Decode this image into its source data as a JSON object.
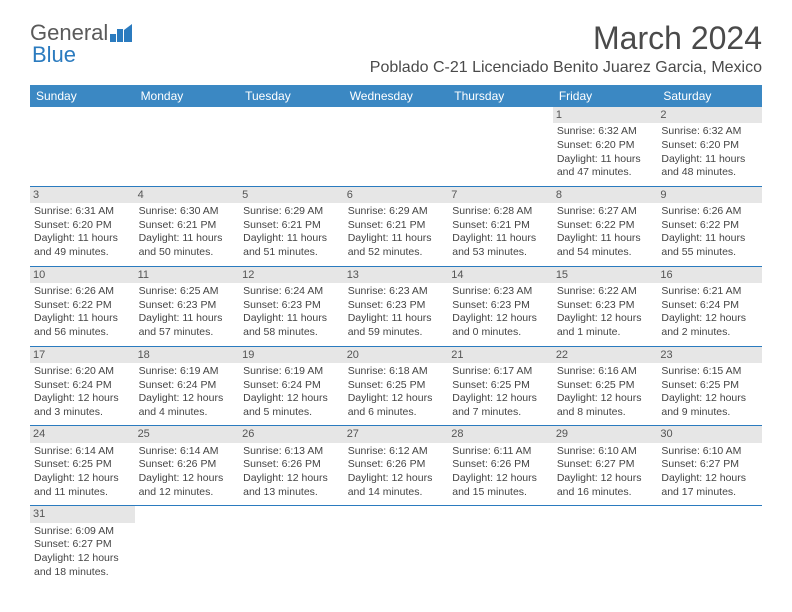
{
  "logo": {
    "general": "General",
    "blue": "Blue"
  },
  "month_title": "March 2024",
  "location": "Poblado C-21 Licenciado Benito Juarez Garcia, Mexico",
  "colors": {
    "header_bg": "#3b88c3",
    "header_text": "#ffffff",
    "border": "#2b7bbf",
    "daynum_bg": "#e6e6e6"
  },
  "weekdays": [
    "Sunday",
    "Monday",
    "Tuesday",
    "Wednesday",
    "Thursday",
    "Friday",
    "Saturday"
  ],
  "weeks": [
    [
      null,
      null,
      null,
      null,
      null,
      {
        "n": "1",
        "sr": "Sunrise: 6:32 AM",
        "ss": "Sunset: 6:20 PM",
        "d1": "Daylight: 11 hours",
        "d2": "and 47 minutes."
      },
      {
        "n": "2",
        "sr": "Sunrise: 6:32 AM",
        "ss": "Sunset: 6:20 PM",
        "d1": "Daylight: 11 hours",
        "d2": "and 48 minutes."
      }
    ],
    [
      {
        "n": "3",
        "sr": "Sunrise: 6:31 AM",
        "ss": "Sunset: 6:20 PM",
        "d1": "Daylight: 11 hours",
        "d2": "and 49 minutes."
      },
      {
        "n": "4",
        "sr": "Sunrise: 6:30 AM",
        "ss": "Sunset: 6:21 PM",
        "d1": "Daylight: 11 hours",
        "d2": "and 50 minutes."
      },
      {
        "n": "5",
        "sr": "Sunrise: 6:29 AM",
        "ss": "Sunset: 6:21 PM",
        "d1": "Daylight: 11 hours",
        "d2": "and 51 minutes."
      },
      {
        "n": "6",
        "sr": "Sunrise: 6:29 AM",
        "ss": "Sunset: 6:21 PM",
        "d1": "Daylight: 11 hours",
        "d2": "and 52 minutes."
      },
      {
        "n": "7",
        "sr": "Sunrise: 6:28 AM",
        "ss": "Sunset: 6:21 PM",
        "d1": "Daylight: 11 hours",
        "d2": "and 53 minutes."
      },
      {
        "n": "8",
        "sr": "Sunrise: 6:27 AM",
        "ss": "Sunset: 6:22 PM",
        "d1": "Daylight: 11 hours",
        "d2": "and 54 minutes."
      },
      {
        "n": "9",
        "sr": "Sunrise: 6:26 AM",
        "ss": "Sunset: 6:22 PM",
        "d1": "Daylight: 11 hours",
        "d2": "and 55 minutes."
      }
    ],
    [
      {
        "n": "10",
        "sr": "Sunrise: 6:26 AM",
        "ss": "Sunset: 6:22 PM",
        "d1": "Daylight: 11 hours",
        "d2": "and 56 minutes."
      },
      {
        "n": "11",
        "sr": "Sunrise: 6:25 AM",
        "ss": "Sunset: 6:23 PM",
        "d1": "Daylight: 11 hours",
        "d2": "and 57 minutes."
      },
      {
        "n": "12",
        "sr": "Sunrise: 6:24 AM",
        "ss": "Sunset: 6:23 PM",
        "d1": "Daylight: 11 hours",
        "d2": "and 58 minutes."
      },
      {
        "n": "13",
        "sr": "Sunrise: 6:23 AM",
        "ss": "Sunset: 6:23 PM",
        "d1": "Daylight: 11 hours",
        "d2": "and 59 minutes."
      },
      {
        "n": "14",
        "sr": "Sunrise: 6:23 AM",
        "ss": "Sunset: 6:23 PM",
        "d1": "Daylight: 12 hours",
        "d2": "and 0 minutes."
      },
      {
        "n": "15",
        "sr": "Sunrise: 6:22 AM",
        "ss": "Sunset: 6:23 PM",
        "d1": "Daylight: 12 hours",
        "d2": "and 1 minute."
      },
      {
        "n": "16",
        "sr": "Sunrise: 6:21 AM",
        "ss": "Sunset: 6:24 PM",
        "d1": "Daylight: 12 hours",
        "d2": "and 2 minutes."
      }
    ],
    [
      {
        "n": "17",
        "sr": "Sunrise: 6:20 AM",
        "ss": "Sunset: 6:24 PM",
        "d1": "Daylight: 12 hours",
        "d2": "and 3 minutes."
      },
      {
        "n": "18",
        "sr": "Sunrise: 6:19 AM",
        "ss": "Sunset: 6:24 PM",
        "d1": "Daylight: 12 hours",
        "d2": "and 4 minutes."
      },
      {
        "n": "19",
        "sr": "Sunrise: 6:19 AM",
        "ss": "Sunset: 6:24 PM",
        "d1": "Daylight: 12 hours",
        "d2": "and 5 minutes."
      },
      {
        "n": "20",
        "sr": "Sunrise: 6:18 AM",
        "ss": "Sunset: 6:25 PM",
        "d1": "Daylight: 12 hours",
        "d2": "and 6 minutes."
      },
      {
        "n": "21",
        "sr": "Sunrise: 6:17 AM",
        "ss": "Sunset: 6:25 PM",
        "d1": "Daylight: 12 hours",
        "d2": "and 7 minutes."
      },
      {
        "n": "22",
        "sr": "Sunrise: 6:16 AM",
        "ss": "Sunset: 6:25 PM",
        "d1": "Daylight: 12 hours",
        "d2": "and 8 minutes."
      },
      {
        "n": "23",
        "sr": "Sunrise: 6:15 AM",
        "ss": "Sunset: 6:25 PM",
        "d1": "Daylight: 12 hours",
        "d2": "and 9 minutes."
      }
    ],
    [
      {
        "n": "24",
        "sr": "Sunrise: 6:14 AM",
        "ss": "Sunset: 6:25 PM",
        "d1": "Daylight: 12 hours",
        "d2": "and 11 minutes."
      },
      {
        "n": "25",
        "sr": "Sunrise: 6:14 AM",
        "ss": "Sunset: 6:26 PM",
        "d1": "Daylight: 12 hours",
        "d2": "and 12 minutes."
      },
      {
        "n": "26",
        "sr": "Sunrise: 6:13 AM",
        "ss": "Sunset: 6:26 PM",
        "d1": "Daylight: 12 hours",
        "d2": "and 13 minutes."
      },
      {
        "n": "27",
        "sr": "Sunrise: 6:12 AM",
        "ss": "Sunset: 6:26 PM",
        "d1": "Daylight: 12 hours",
        "d2": "and 14 minutes."
      },
      {
        "n": "28",
        "sr": "Sunrise: 6:11 AM",
        "ss": "Sunset: 6:26 PM",
        "d1": "Daylight: 12 hours",
        "d2": "and 15 minutes."
      },
      {
        "n": "29",
        "sr": "Sunrise: 6:10 AM",
        "ss": "Sunset: 6:27 PM",
        "d1": "Daylight: 12 hours",
        "d2": "and 16 minutes."
      },
      {
        "n": "30",
        "sr": "Sunrise: 6:10 AM",
        "ss": "Sunset: 6:27 PM",
        "d1": "Daylight: 12 hours",
        "d2": "and 17 minutes."
      }
    ],
    [
      {
        "n": "31",
        "sr": "Sunrise: 6:09 AM",
        "ss": "Sunset: 6:27 PM",
        "d1": "Daylight: 12 hours",
        "d2": "and 18 minutes."
      },
      null,
      null,
      null,
      null,
      null,
      null
    ]
  ]
}
